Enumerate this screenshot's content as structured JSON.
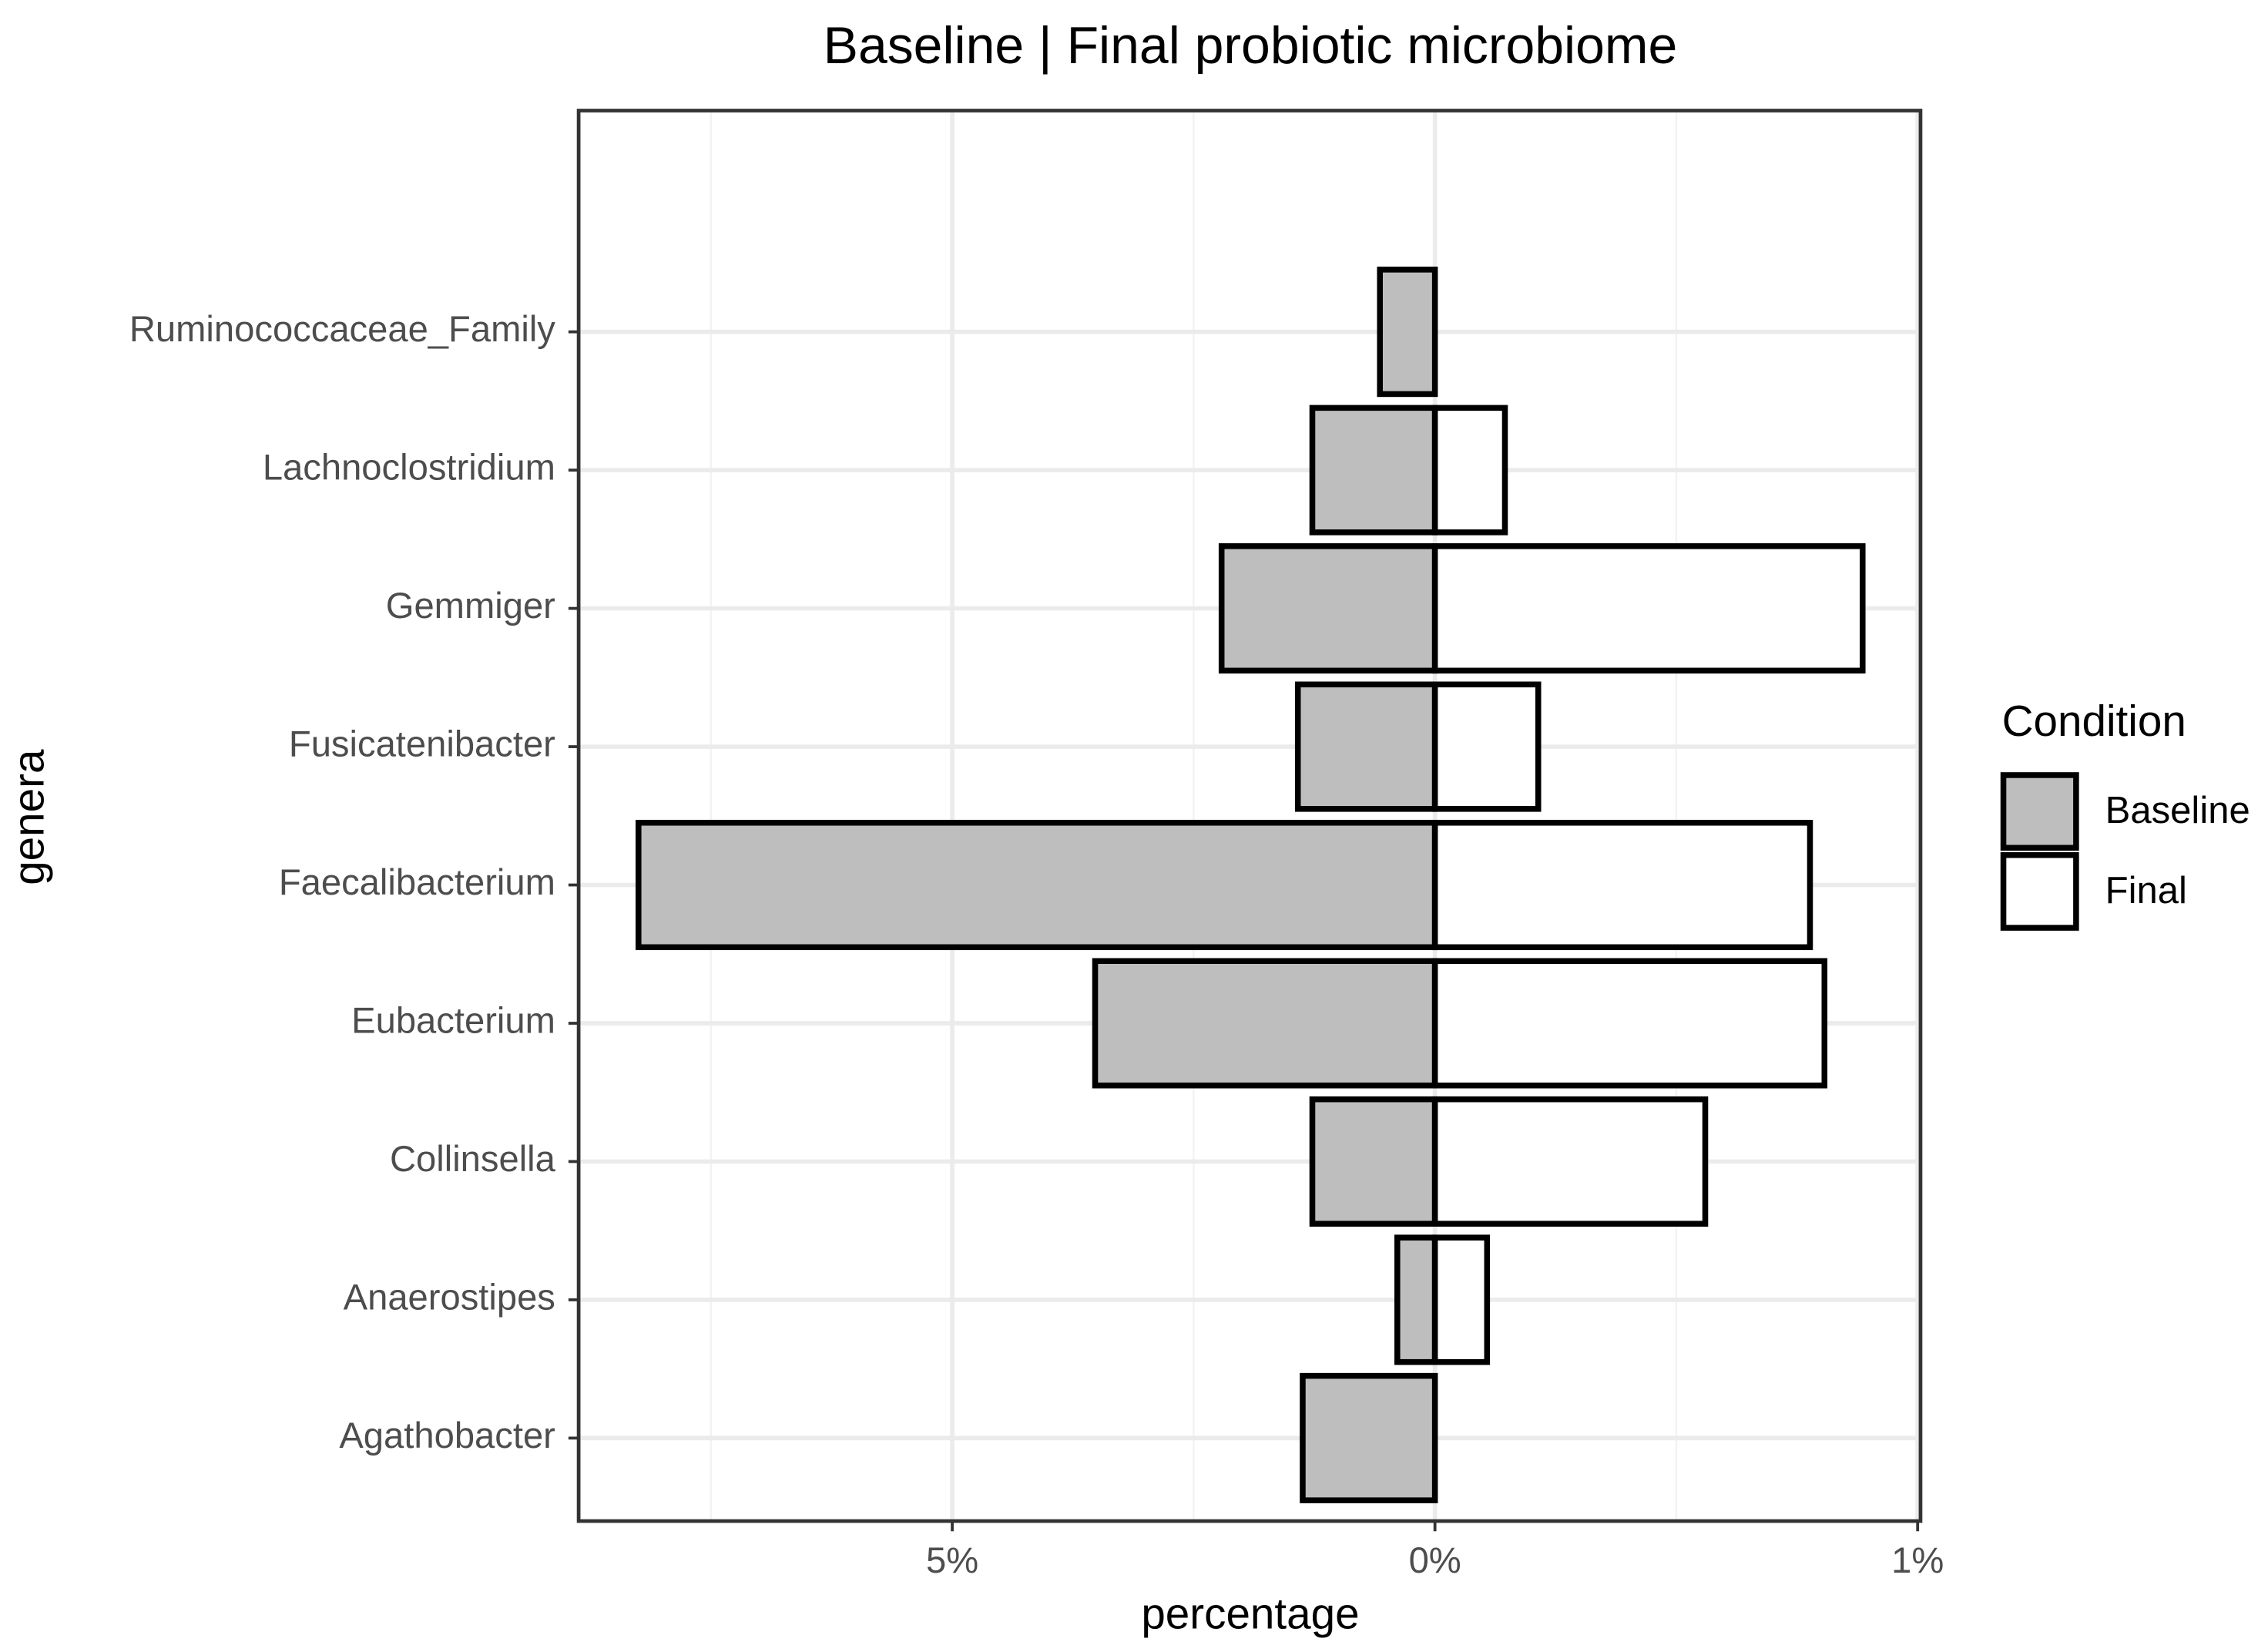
{
  "chart_data": {
    "type": "diverging_bar",
    "title": "Baseline | Final probiotic microbiome",
    "x_label": "percentage",
    "y_label": "genera",
    "legend_title": "Condition",
    "categories": [
      "Agathobacter",
      "Anaerostipes",
      "Collinsella",
      "Eubacterium",
      "Faecalibacterium",
      "Fusicatenibacter",
      "Gemmiger",
      "Lachnoclostridium",
      "Ruminococcaceae_Family"
    ],
    "series": [
      {
        "name": "Baseline",
        "color": "#bebebe",
        "axis": "x",
        "values": [
          1.37,
          0.39,
          1.27,
          3.52,
          8.25,
          1.42,
          2.21,
          1.27,
          0.57
        ]
      },
      {
        "name": "Final",
        "color": "#ffffff",
        "axis": "x2",
        "values": [
          null,
          0.108,
          0.56,
          0.807,
          0.777,
          0.214,
          0.886,
          0.145,
          null
        ]
      }
    ],
    "xlim": [
      8.87,
      0
    ],
    "xticks": [
      {
        "value": 5,
        "label": "5%"
      },
      {
        "value": 0,
        "label": "0%"
      }
    ],
    "x2lim": [
      0,
      1.006
    ],
    "x2ticks": [
      {
        "value": 1,
        "label": "1%"
      }
    ],
    "grid": true
  }
}
